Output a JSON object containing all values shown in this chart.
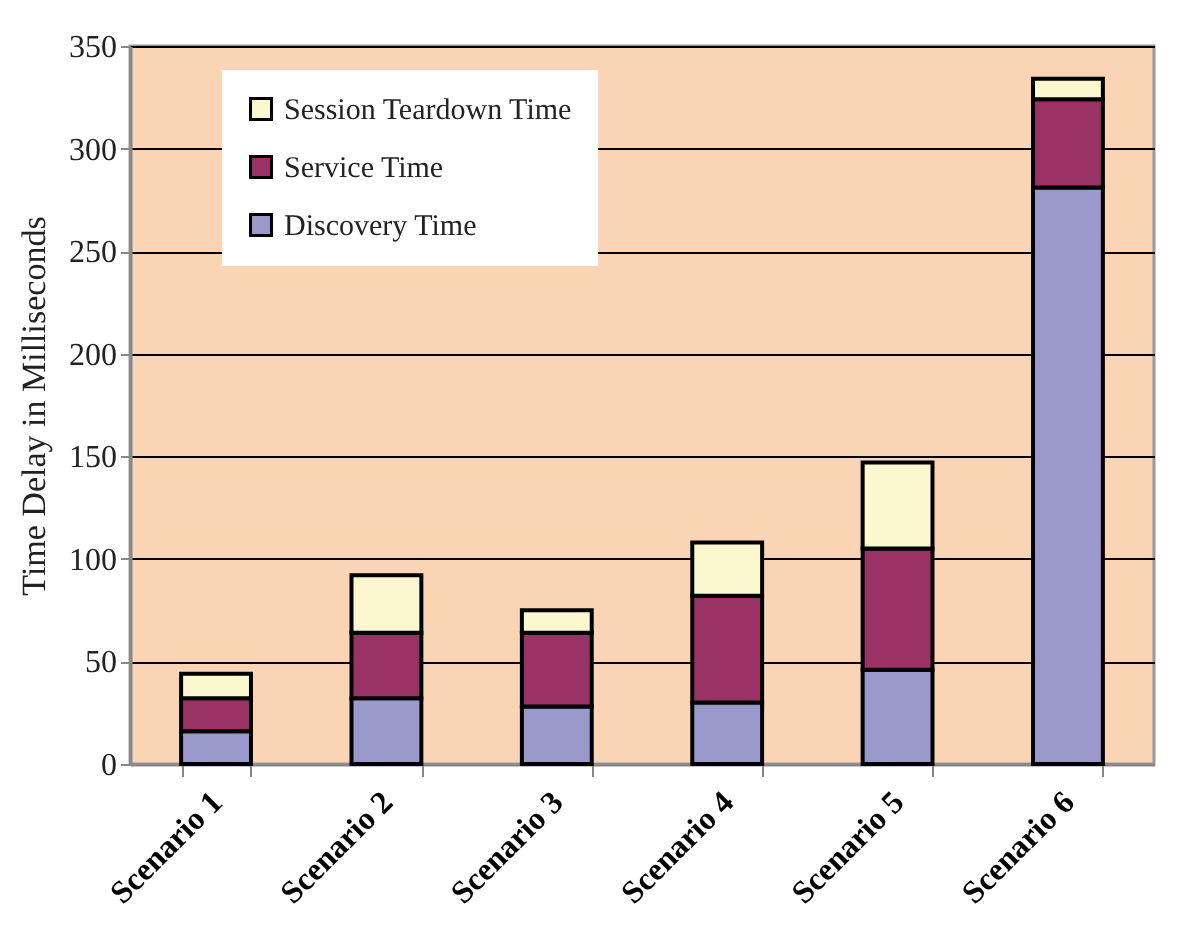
{
  "chart_data": {
    "type": "bar",
    "stacked": true,
    "ylabel": "Time Delay in Milliseconds",
    "categories": [
      "Scenario 1",
      "Scenario 2",
      "Scenario 3",
      "Scenario 4",
      "Scenario 5",
      "Scenario 6"
    ],
    "series": [
      {
        "name": "Discovery Time",
        "color": "#9999cc",
        "values": [
          16,
          32,
          28,
          30,
          46,
          281
        ]
      },
      {
        "name": "Service Time",
        "color": "#993366",
        "values": [
          16,
          32,
          36,
          52,
          59,
          43
        ]
      },
      {
        "name": "Session Teardown Time",
        "color": "#fbf8d0",
        "values": [
          12,
          28,
          11,
          26,
          42,
          10
        ]
      }
    ],
    "ylim": [
      0,
      350
    ],
    "yticks": [
      0,
      50,
      100,
      150,
      200,
      250,
      300,
      350
    ],
    "grid": "y",
    "legend": "top left"
  }
}
